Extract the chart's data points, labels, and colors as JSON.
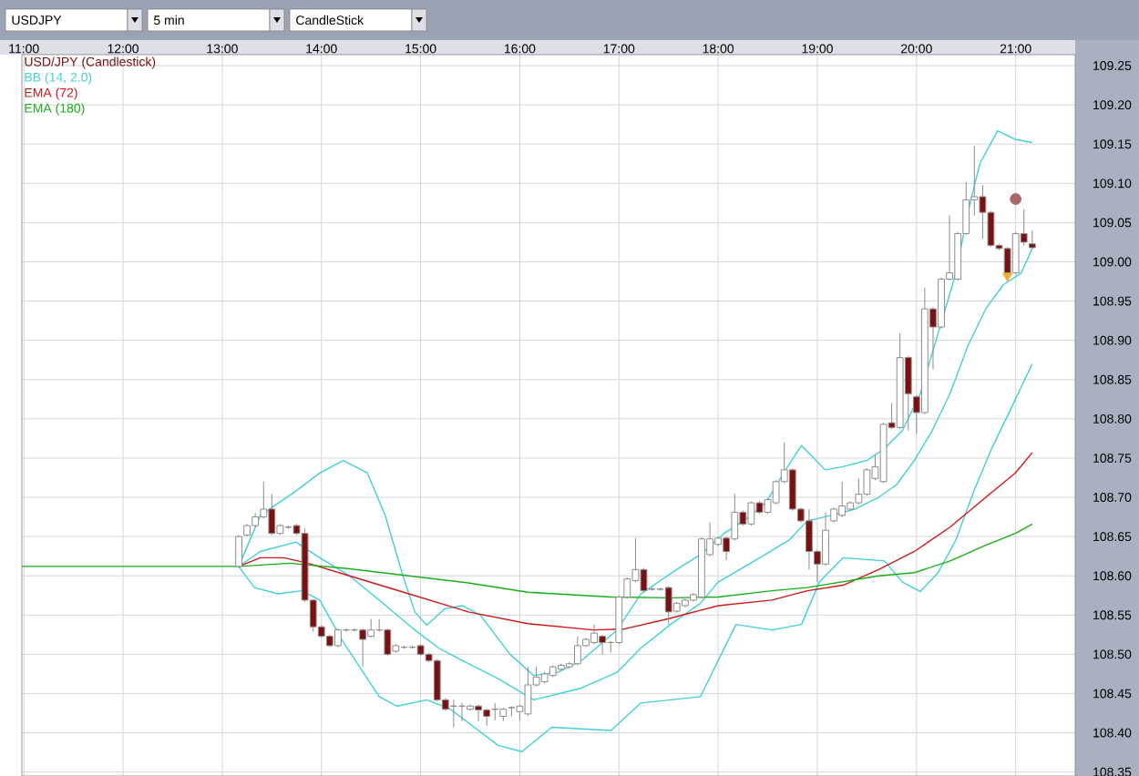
{
  "chart_data": {
    "type": "candlestick",
    "annotations": [
      "USDJPY",
      "5 min",
      "CandleStick"
    ],
    "xlim": [
      10.98,
      21.6
    ],
    "xticks": [
      {
        "value": 11,
        "label": "11:00"
      },
      {
        "value": 12,
        "label": "12:00"
      },
      {
        "value": 13,
        "label": "13:00"
      },
      {
        "value": 14,
        "label": "14:00"
      },
      {
        "value": 15,
        "label": "15:00"
      },
      {
        "value": 16,
        "label": "16:00"
      },
      {
        "value": 17,
        "label": "17:00"
      },
      {
        "value": 18,
        "label": "18:00"
      },
      {
        "value": 19,
        "label": "19:00"
      },
      {
        "value": 20,
        "label": "20:00"
      },
      {
        "value": 21,
        "label": "21:00"
      }
    ],
    "ylim": [
      108.345,
      109.264
    ],
    "yticks": [
      {
        "value": 108.35,
        "label": "108.35"
      },
      {
        "value": 108.4,
        "label": "108.40"
      },
      {
        "value": 108.45,
        "label": "108.45"
      },
      {
        "value": 108.5,
        "label": "108.50"
      },
      {
        "value": 108.55,
        "label": "108.55"
      },
      {
        "value": 108.6,
        "label": "108.60"
      },
      {
        "value": 108.65,
        "label": "108.65"
      },
      {
        "value": 108.7,
        "label": "108.70"
      },
      {
        "value": 108.75,
        "label": "108.75"
      },
      {
        "value": 108.8,
        "label": "108.80"
      },
      {
        "value": 108.85,
        "label": "108.85"
      },
      {
        "value": 108.9,
        "label": "108.90"
      },
      {
        "value": 108.95,
        "label": "108.95"
      },
      {
        "value": 109.0,
        "label": "109.00"
      },
      {
        "value": 109.05,
        "label": "109.05"
      },
      {
        "value": 109.1,
        "label": "109.10"
      },
      {
        "value": 109.15,
        "label": "109.15"
      },
      {
        "value": 109.2,
        "label": "109.20"
      },
      {
        "value": 109.25,
        "label": "109.25"
      }
    ],
    "grid": true,
    "legend": "top left",
    "series": [
      {
        "name": "USD/JPY (Candlestick)",
        "color": "#7a1010",
        "colors": [
          "#ffffff",
          "#ffffff",
          "#ffffff",
          "#ffffff",
          "#7a1010",
          "#ffffff",
          "#8c8c8c",
          "#7a1010",
          "#7a1010",
          "#7a1010",
          "#7a1010",
          "#7a1010",
          "#ffffff",
          "#8c8c8c",
          "#8c8c8c",
          "#7a1010",
          "#ffffff",
          "#8c8c8c",
          "#7a1010",
          "#ffffff",
          "#8c8c8c",
          "#8c8c8c",
          "#7a1010",
          "#7a1010",
          "#7a1010",
          "#7a1010",
          "#8c8c8c",
          "#8c8c8c",
          "#ffffff",
          "#7a1010",
          "#7a1010",
          "#8c8c8c",
          "#ffffff",
          "#8c8c8c",
          "#ffffff",
          "#ffffff",
          "#ffffff",
          "#ffffff",
          "#ffffff",
          "#ffffff",
          "#ffffff",
          "#ffffff",
          "#ffffff",
          "#ffffff",
          "#7a1010",
          "#8c8c8c",
          "#ffffff",
          "#ffffff",
          "#ffffff",
          "#7a1010",
          "#8c8c8c",
          "#8c8c8c",
          "#7a1010",
          "#ffffff",
          "#ffffff",
          "#ffffff",
          "#ffffff",
          "#ffffff",
          "#ffffff",
          "#7a1010",
          "#ffffff",
          "#7a1010",
          "#ffffff",
          "#7a1010",
          "#ffffff",
          "#ffffff",
          "#ffffff",
          "#7a1010",
          "#7a1010",
          "#7a1010",
          "#7a1010",
          "#ffffff",
          "#ffffff",
          "#ffffff",
          "#ffffff",
          "#ffffff",
          "#ffffff",
          "#ffffff",
          "#ffffff",
          "#7a1010",
          "#ffffff",
          "#7a1010",
          "#7a1010",
          "#ffffff",
          "#7a1010",
          "#ffffff",
          "#ffffff",
          "#ffffff",
          "#ffffff",
          "#ffffff",
          "#7a1010",
          "#7a1010",
          "#7a1010",
          "#7a1010",
          "#ffffff",
          "#7a1010",
          "#7a1010"
        ],
        "x": [
          13.167,
          13.25,
          13.333,
          13.417,
          13.5,
          13.583,
          13.667,
          13.75,
          13.833,
          13.917,
          14,
          14.083,
          14.167,
          14.25,
          14.333,
          14.417,
          14.5,
          14.583,
          14.667,
          14.75,
          14.833,
          14.917,
          15,
          15.083,
          15.167,
          15.25,
          15.333,
          15.417,
          15.5,
          15.583,
          15.667,
          15.75,
          15.833,
          15.917,
          16,
          16.083,
          16.167,
          16.25,
          16.333,
          16.417,
          16.5,
          16.583,
          16.667,
          16.75,
          16.833,
          16.917,
          17,
          17.083,
          17.167,
          17.25,
          17.333,
          17.417,
          17.5,
          17.583,
          17.667,
          17.75,
          17.833,
          17.917,
          18,
          18.083,
          18.167,
          18.25,
          18.333,
          18.417,
          18.5,
          18.583,
          18.667,
          18.75,
          18.833,
          18.917,
          19,
          19.083,
          19.167,
          19.25,
          19.333,
          19.417,
          19.5,
          19.583,
          19.667,
          19.75,
          19.833,
          19.917,
          20,
          20.083,
          20.167,
          20.25,
          20.333,
          20.417,
          20.5,
          20.583,
          20.667,
          20.75,
          20.833,
          20.917,
          21,
          21.083,
          21.167
        ],
        "ohlc": [
          [
            108.612,
            108.652,
            108.61,
            108.65
          ],
          [
            108.652,
            108.666,
            108.65,
            108.664
          ],
          [
            108.664,
            108.68,
            108.662,
            108.675
          ],
          [
            108.675,
            108.72,
            108.673,
            108.685
          ],
          [
            108.685,
            108.704,
            108.652,
            108.654
          ],
          [
            108.654,
            108.666,
            108.652,
            108.664
          ],
          [
            108.662,
            108.664,
            108.66,
            108.662
          ],
          [
            108.664,
            108.666,
            108.652,
            108.654
          ],
          [
            108.654,
            108.66,
            108.567,
            108.569
          ],
          [
            108.569,
            108.57,
            108.529,
            108.535
          ],
          [
            108.535,
            108.537,
            108.521,
            108.523
          ],
          [
            108.523,
            108.525,
            108.509,
            108.511
          ],
          [
            108.511,
            108.533,
            108.509,
            108.531
          ],
          [
            108.531,
            108.533,
            108.529,
            108.531
          ],
          [
            108.531,
            108.533,
            108.529,
            108.531
          ],
          [
            108.531,
            108.533,
            108.484,
            108.519
          ],
          [
            108.523,
            108.545,
            108.521,
            108.531
          ],
          [
            108.531,
            108.545,
            108.529,
            108.531
          ],
          [
            108.531,
            108.533,
            108.498,
            108.5
          ],
          [
            108.504,
            108.513,
            108.502,
            108.511
          ],
          [
            108.509,
            108.511,
            108.507,
            108.509
          ],
          [
            108.509,
            108.511,
            108.507,
            108.509
          ],
          [
            108.511,
            108.513,
            108.498,
            108.5
          ],
          [
            108.5,
            108.502,
            108.49,
            108.492
          ],
          [
            108.492,
            108.494,
            108.44,
            108.442
          ],
          [
            108.442,
            108.444,
            108.428,
            108.43
          ],
          [
            108.434,
            108.442,
            108.407,
            108.434
          ],
          [
            108.434,
            108.438,
            108.415,
            108.434
          ],
          [
            108.43,
            108.436,
            108.428,
            108.434
          ],
          [
            108.434,
            108.436,
            108.415,
            108.429
          ],
          [
            108.429,
            108.431,
            108.409,
            108.421
          ],
          [
            108.43,
            108.438,
            108.416,
            108.43
          ],
          [
            108.421,
            108.432,
            108.415,
            108.43
          ],
          [
            108.432,
            108.434,
            108.421,
            108.432
          ],
          [
            108.427,
            108.436,
            108.416,
            108.434
          ],
          [
            108.424,
            108.484,
            108.422,
            108.461
          ],
          [
            108.461,
            108.484,
            108.459,
            108.471
          ],
          [
            108.465,
            108.478,
            108.463,
            108.475
          ],
          [
            108.473,
            108.486,
            108.471,
            108.484
          ],
          [
            108.481,
            108.488,
            108.479,
            108.486
          ],
          [
            108.484,
            108.49,
            108.482,
            108.488
          ],
          [
            108.488,
            108.523,
            108.486,
            108.511
          ],
          [
            108.511,
            108.521,
            108.509,
            108.519
          ],
          [
            108.515,
            108.538,
            108.513,
            108.527
          ],
          [
            108.523,
            108.525,
            108.5,
            108.515
          ],
          [
            108.515,
            108.517,
            108.502,
            108.515
          ],
          [
            108.515,
            108.575,
            108.513,
            108.573
          ],
          [
            108.573,
            108.598,
            108.571,
            108.596
          ],
          [
            108.594,
            108.648,
            108.592,
            108.608
          ],
          [
            108.608,
            108.61,
            108.579,
            108.581
          ],
          [
            108.583,
            108.585,
            108.581,
            108.583
          ],
          [
            108.583,
            108.585,
            108.581,
            108.583
          ],
          [
            108.585,
            108.587,
            108.538,
            108.554
          ],
          [
            108.555,
            108.567,
            108.553,
            108.565
          ],
          [
            108.562,
            108.571,
            108.56,
            108.569
          ],
          [
            108.569,
            108.578,
            108.567,
            108.576
          ],
          [
            108.573,
            108.649,
            108.571,
            108.647
          ],
          [
            108.627,
            108.668,
            108.625,
            108.647
          ],
          [
            108.64,
            108.65,
            108.638,
            108.648
          ],
          [
            108.648,
            108.65,
            108.62,
            108.631
          ],
          [
            108.647,
            108.704,
            108.645,
            108.681
          ],
          [
            108.681,
            108.683,
            108.664,
            108.666
          ],
          [
            108.666,
            108.695,
            108.664,
            108.693
          ],
          [
            108.693,
            108.695,
            108.679,
            108.681
          ],
          [
            108.681,
            108.699,
            108.679,
            108.697
          ],
          [
            108.693,
            108.722,
            108.691,
            108.72
          ],
          [
            108.72,
            108.77,
            108.718,
            108.735
          ],
          [
            108.735,
            108.737,
            108.683,
            108.685
          ],
          [
            108.685,
            108.687,
            108.668,
            108.67
          ],
          [
            108.67,
            108.685,
            108.608,
            108.631
          ],
          [
            108.631,
            108.633,
            108.592,
            108.615
          ],
          [
            108.615,
            108.681,
            108.613,
            108.658
          ],
          [
            108.67,
            108.687,
            108.668,
            108.685
          ],
          [
            108.677,
            108.72,
            108.675,
            108.689
          ],
          [
            108.685,
            108.695,
            108.683,
            108.693
          ],
          [
            108.693,
            108.724,
            108.691,
            108.704
          ],
          [
            108.704,
            108.737,
            108.702,
            108.735
          ],
          [
            108.724,
            108.754,
            108.722,
            108.739
          ],
          [
            108.72,
            108.795,
            108.718,
            108.793
          ],
          [
            108.795,
            108.82,
            108.787,
            108.789
          ],
          [
            108.789,
            108.909,
            108.787,
            108.878
          ],
          [
            108.878,
            108.88,
            108.785,
            108.832
          ],
          [
            108.828,
            108.83,
            108.781,
            108.808
          ],
          [
            108.808,
            108.967,
            108.806,
            108.94
          ],
          [
            108.94,
            108.942,
            108.863,
            108.917
          ],
          [
            108.917,
            108.98,
            108.915,
            108.978
          ],
          [
            108.978,
            109.059,
            108.976,
            108.986
          ],
          [
            108.978,
            109.038,
            108.976,
            109.036
          ],
          [
            109.036,
            109.102,
            109.034,
            109.079
          ],
          [
            109.079,
            109.148,
            109.059,
            109.083
          ],
          [
            109.083,
            109.098,
            109.029,
            109.063
          ],
          [
            109.063,
            109.065,
            109.019,
            109.021
          ],
          [
            109.021,
            109.023,
            109.015,
            109.017
          ],
          [
            109.017,
            109.019,
            108.978,
            108.986
          ],
          [
            108.986,
            109.038,
            108.984,
            109.036
          ],
          [
            109.036,
            109.067,
            109.021,
            109.025
          ],
          [
            109.023,
            109.04,
            109.016,
            109.018
          ]
        ]
      },
      {
        "type": "line",
        "name": "BB (14, 2.0)",
        "color": "#40d0d8",
        "x": [
          13.167,
          13.384,
          13.743,
          13.983,
          14.223,
          14.463,
          14.643,
          14.822,
          14.942,
          15.062,
          15.242,
          15.422,
          15.602,
          15.902,
          16.141,
          16.382,
          16.622,
          16.981,
          17.221,
          17.581,
          17.821,
          18.06,
          18.3,
          18.48,
          18.66,
          18.84,
          19.079,
          19.259,
          19.499,
          19.678,
          19.858,
          20.038,
          20.218,
          20.398,
          20.518,
          20.638,
          20.817,
          20.997,
          21.167
        ],
        "values": [
          108.612,
          108.677,
          108.708,
          108.731,
          108.747,
          108.731,
          108.677,
          108.6,
          108.554,
          108.537,
          108.558,
          108.562,
          108.55,
          108.5,
          108.473,
          108.477,
          108.492,
          108.531,
          108.577,
          108.608,
          108.627,
          108.654,
          108.674,
          108.693,
          108.731,
          108.766,
          108.735,
          108.739,
          108.747,
          108.762,
          108.785,
          108.832,
          108.909,
          108.986,
          109.063,
          109.125,
          109.167,
          109.156,
          109.152
        ]
      },
      {
        "type": "line",
        "color": "#40d0d8",
        "x": [
          13.167,
          13.384,
          13.743,
          13.983,
          14.283,
          14.583,
          14.942,
          15.182,
          15.482,
          15.782,
          16.141,
          16.622,
          16.981,
          17.221,
          17.521,
          17.821,
          18.0,
          18.42,
          18.72,
          18.899,
          19.139,
          19.379,
          19.618,
          19.798,
          19.978,
          20.158,
          20.338,
          20.518,
          20.698,
          20.877,
          21.057,
          21.167
        ],
        "values": [
          108.612,
          108.631,
          108.643,
          108.623,
          108.6,
          108.569,
          108.531,
          108.508,
          108.488,
          108.469,
          108.442,
          108.457,
          108.477,
          108.508,
          108.538,
          108.565,
          108.592,
          108.623,
          108.646,
          108.67,
          108.677,
          108.685,
          108.7,
          108.716,
          108.747,
          108.785,
          108.832,
          108.893,
          108.94,
          108.971,
          108.986,
          109.017
        ]
      },
      {
        "type": "line",
        "color": "#40d0d8",
        "x": [
          13.167,
          13.324,
          13.563,
          13.803,
          13.983,
          14.223,
          14.583,
          14.763,
          15.062,
          15.302,
          15.542,
          15.782,
          16.022,
          16.322,
          16.921,
          17.221,
          17.821,
          18.18,
          18.54,
          18.84,
          19.02,
          19.259,
          19.678,
          19.858,
          20.038,
          20.218,
          20.398,
          20.578,
          20.757,
          20.937,
          21.167
        ],
        "values": [
          108.612,
          108.585,
          108.577,
          108.581,
          108.569,
          108.515,
          108.446,
          108.434,
          108.442,
          108.43,
          108.407,
          108.384,
          108.376,
          108.407,
          108.403,
          108.438,
          108.446,
          108.538,
          108.531,
          108.538,
          108.592,
          108.623,
          108.619,
          108.592,
          108.58,
          108.604,
          108.646,
          108.708,
          108.762,
          108.809,
          108.87
        ]
      },
      {
        "type": "line",
        "name": "EMA (72)",
        "color": "#d01818",
        "x": [
          13.167,
          13.384,
          13.623,
          13.863,
          14.283,
          14.882,
          15.482,
          16.082,
          16.741,
          17.041,
          17.521,
          18.0,
          18.54,
          18.899,
          19.259,
          19.618,
          19.978,
          20.338,
          20.698,
          20.997,
          21.167
        ],
        "values": [
          108.612,
          108.623,
          108.623,
          108.616,
          108.6,
          108.577,
          108.554,
          108.539,
          108.531,
          108.532,
          108.546,
          108.562,
          108.569,
          108.581,
          108.588,
          108.608,
          108.631,
          108.662,
          108.7,
          108.731,
          108.757
        ]
      },
      {
        "type": "line",
        "name": "EMA (180)",
        "color": "#18b018",
        "x": [
          10.98,
          13.167,
          13.683,
          14.283,
          14.882,
          15.482,
          16.082,
          16.921,
          17.521,
          18.0,
          18.54,
          18.899,
          19.618,
          19.978,
          20.338,
          20.698,
          20.997,
          21.167
        ],
        "values": [
          108.612,
          108.612,
          108.616,
          108.609,
          108.6,
          108.591,
          108.579,
          108.573,
          108.572,
          108.573,
          108.581,
          108.585,
          108.6,
          108.604,
          108.619,
          108.639,
          108.654,
          108.666
        ]
      },
      {
        "type": "scatter",
        "color": "#a86868",
        "marker": "circle",
        "x": [
          21.0
        ],
        "values": [
          109.08
        ]
      },
      {
        "type": "scatter",
        "color": "#f0b030",
        "marker": "triangle",
        "x": [
          20.917
        ],
        "values": [
          108.982
        ]
      }
    ]
  }
}
